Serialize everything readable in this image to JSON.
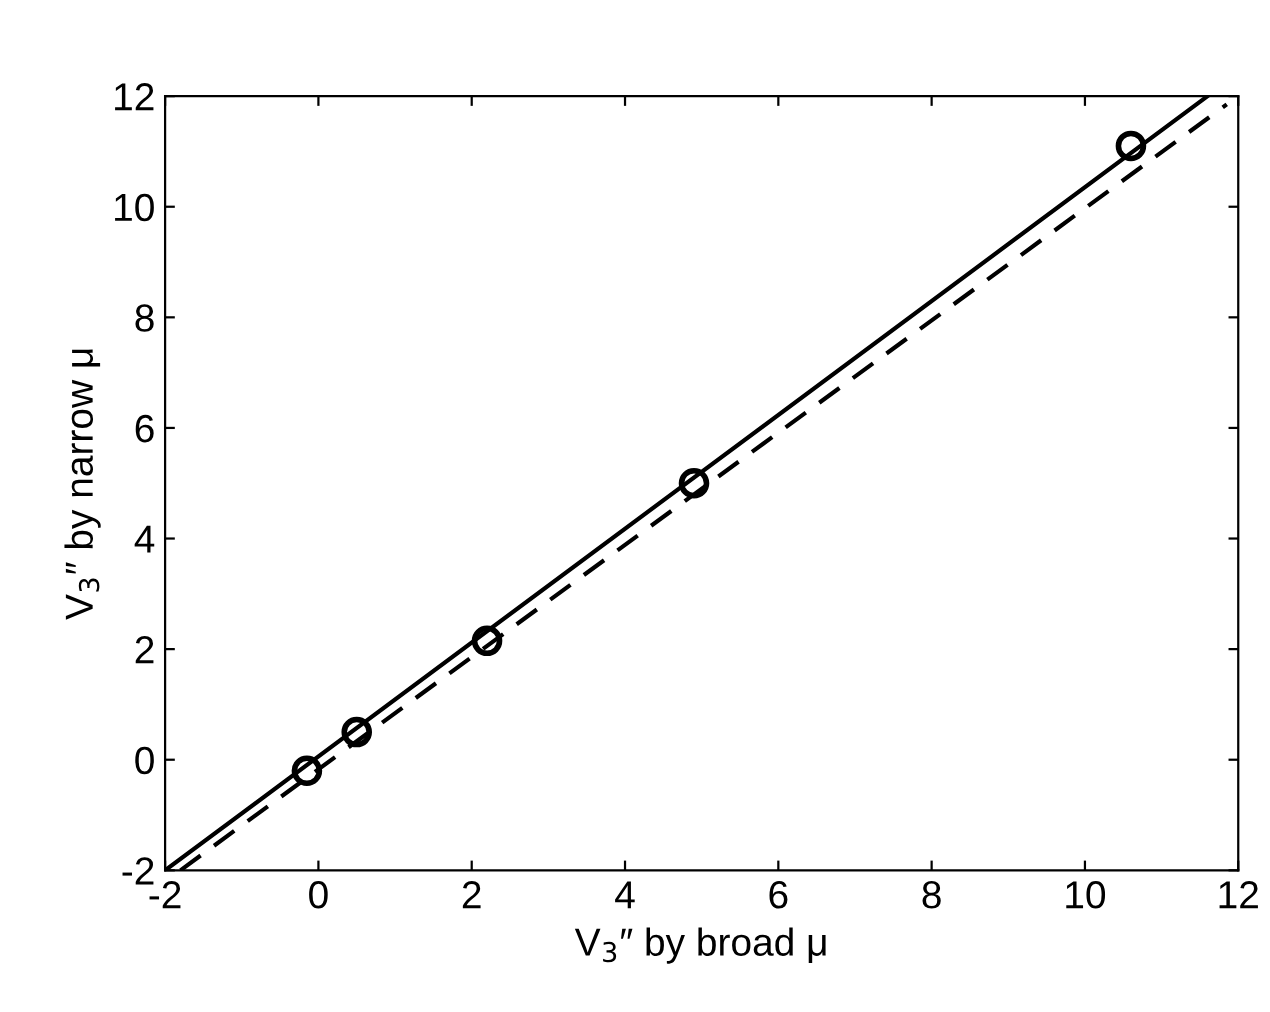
{
  "chart_data": {
    "type": "scatter",
    "xlabel": "V$_{3}$″ by broad μ",
    "ylabel": "V$_{3}$″ by narrow μ",
    "xlim": [
      -2,
      12
    ],
    "ylim": [
      -2,
      12
    ],
    "xticks": [
      -2,
      0,
      2,
      4,
      6,
      8,
      10,
      12
    ],
    "yticks": [
      -2,
      0,
      2,
      4,
      6,
      8,
      10,
      12
    ],
    "grid": false,
    "legend": false,
    "series": [
      {
        "color": "#000000",
        "marker": "circle",
        "x": [
          -0.15,
          0.5,
          2.2,
          4.9,
          10.6
        ],
        "values": [
          -0.2,
          0.5,
          2.15,
          5.0,
          11.1
        ]
      },
      {
        "type": "line",
        "color": "#000000",
        "line_style": "solid",
        "marker": "none",
        "x": [
          -2,
          11.6
        ],
        "values": [
          -2,
          12
        ]
      },
      {
        "type": "line",
        "color": "#000000",
        "line_style": "dashed",
        "marker": "none",
        "x": [
          -1.8,
          11.85
        ],
        "values": [
          -2,
          11.85
        ]
      }
    ]
  }
}
